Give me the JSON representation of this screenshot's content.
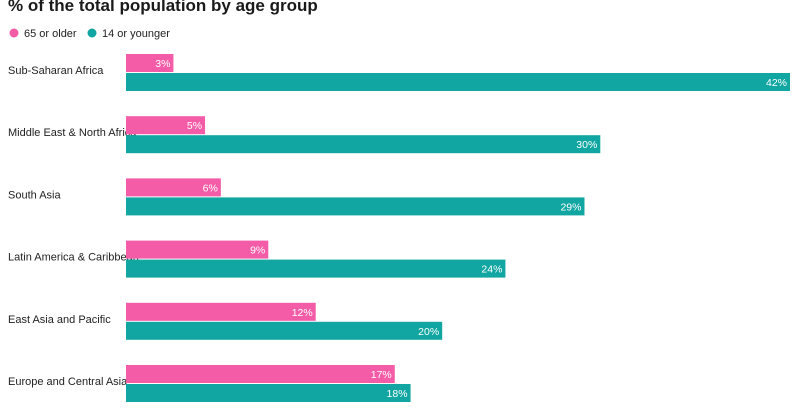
{
  "chart_data": {
    "type": "bar",
    "orientation": "horizontal",
    "title": "% of the total population by age group",
    "categories": [
      "Sub-Saharan Africa",
      "Middle East & North Africa",
      "South Asia",
      "Latin America & Caribbean",
      "East Asia and Pacific",
      "Europe and Central Asia"
    ],
    "series": [
      {
        "name": "65 or older",
        "color": "#f45ca8",
        "values": [
          3,
          5,
          6,
          9,
          12,
          17
        ],
        "labels": [
          "3%",
          "5%",
          "6%",
          "9%",
          "12%",
          "17%"
        ]
      },
      {
        "name": "14 or younger",
        "color": "#11a6a1",
        "values": [
          42,
          30,
          29,
          24,
          20,
          18
        ],
        "labels": [
          "42%",
          "30%",
          "29%",
          "24%",
          "20%",
          "18%"
        ]
      }
    ],
    "xlim": [
      0,
      42
    ],
    "grid": false,
    "legend_position": "top-left"
  }
}
